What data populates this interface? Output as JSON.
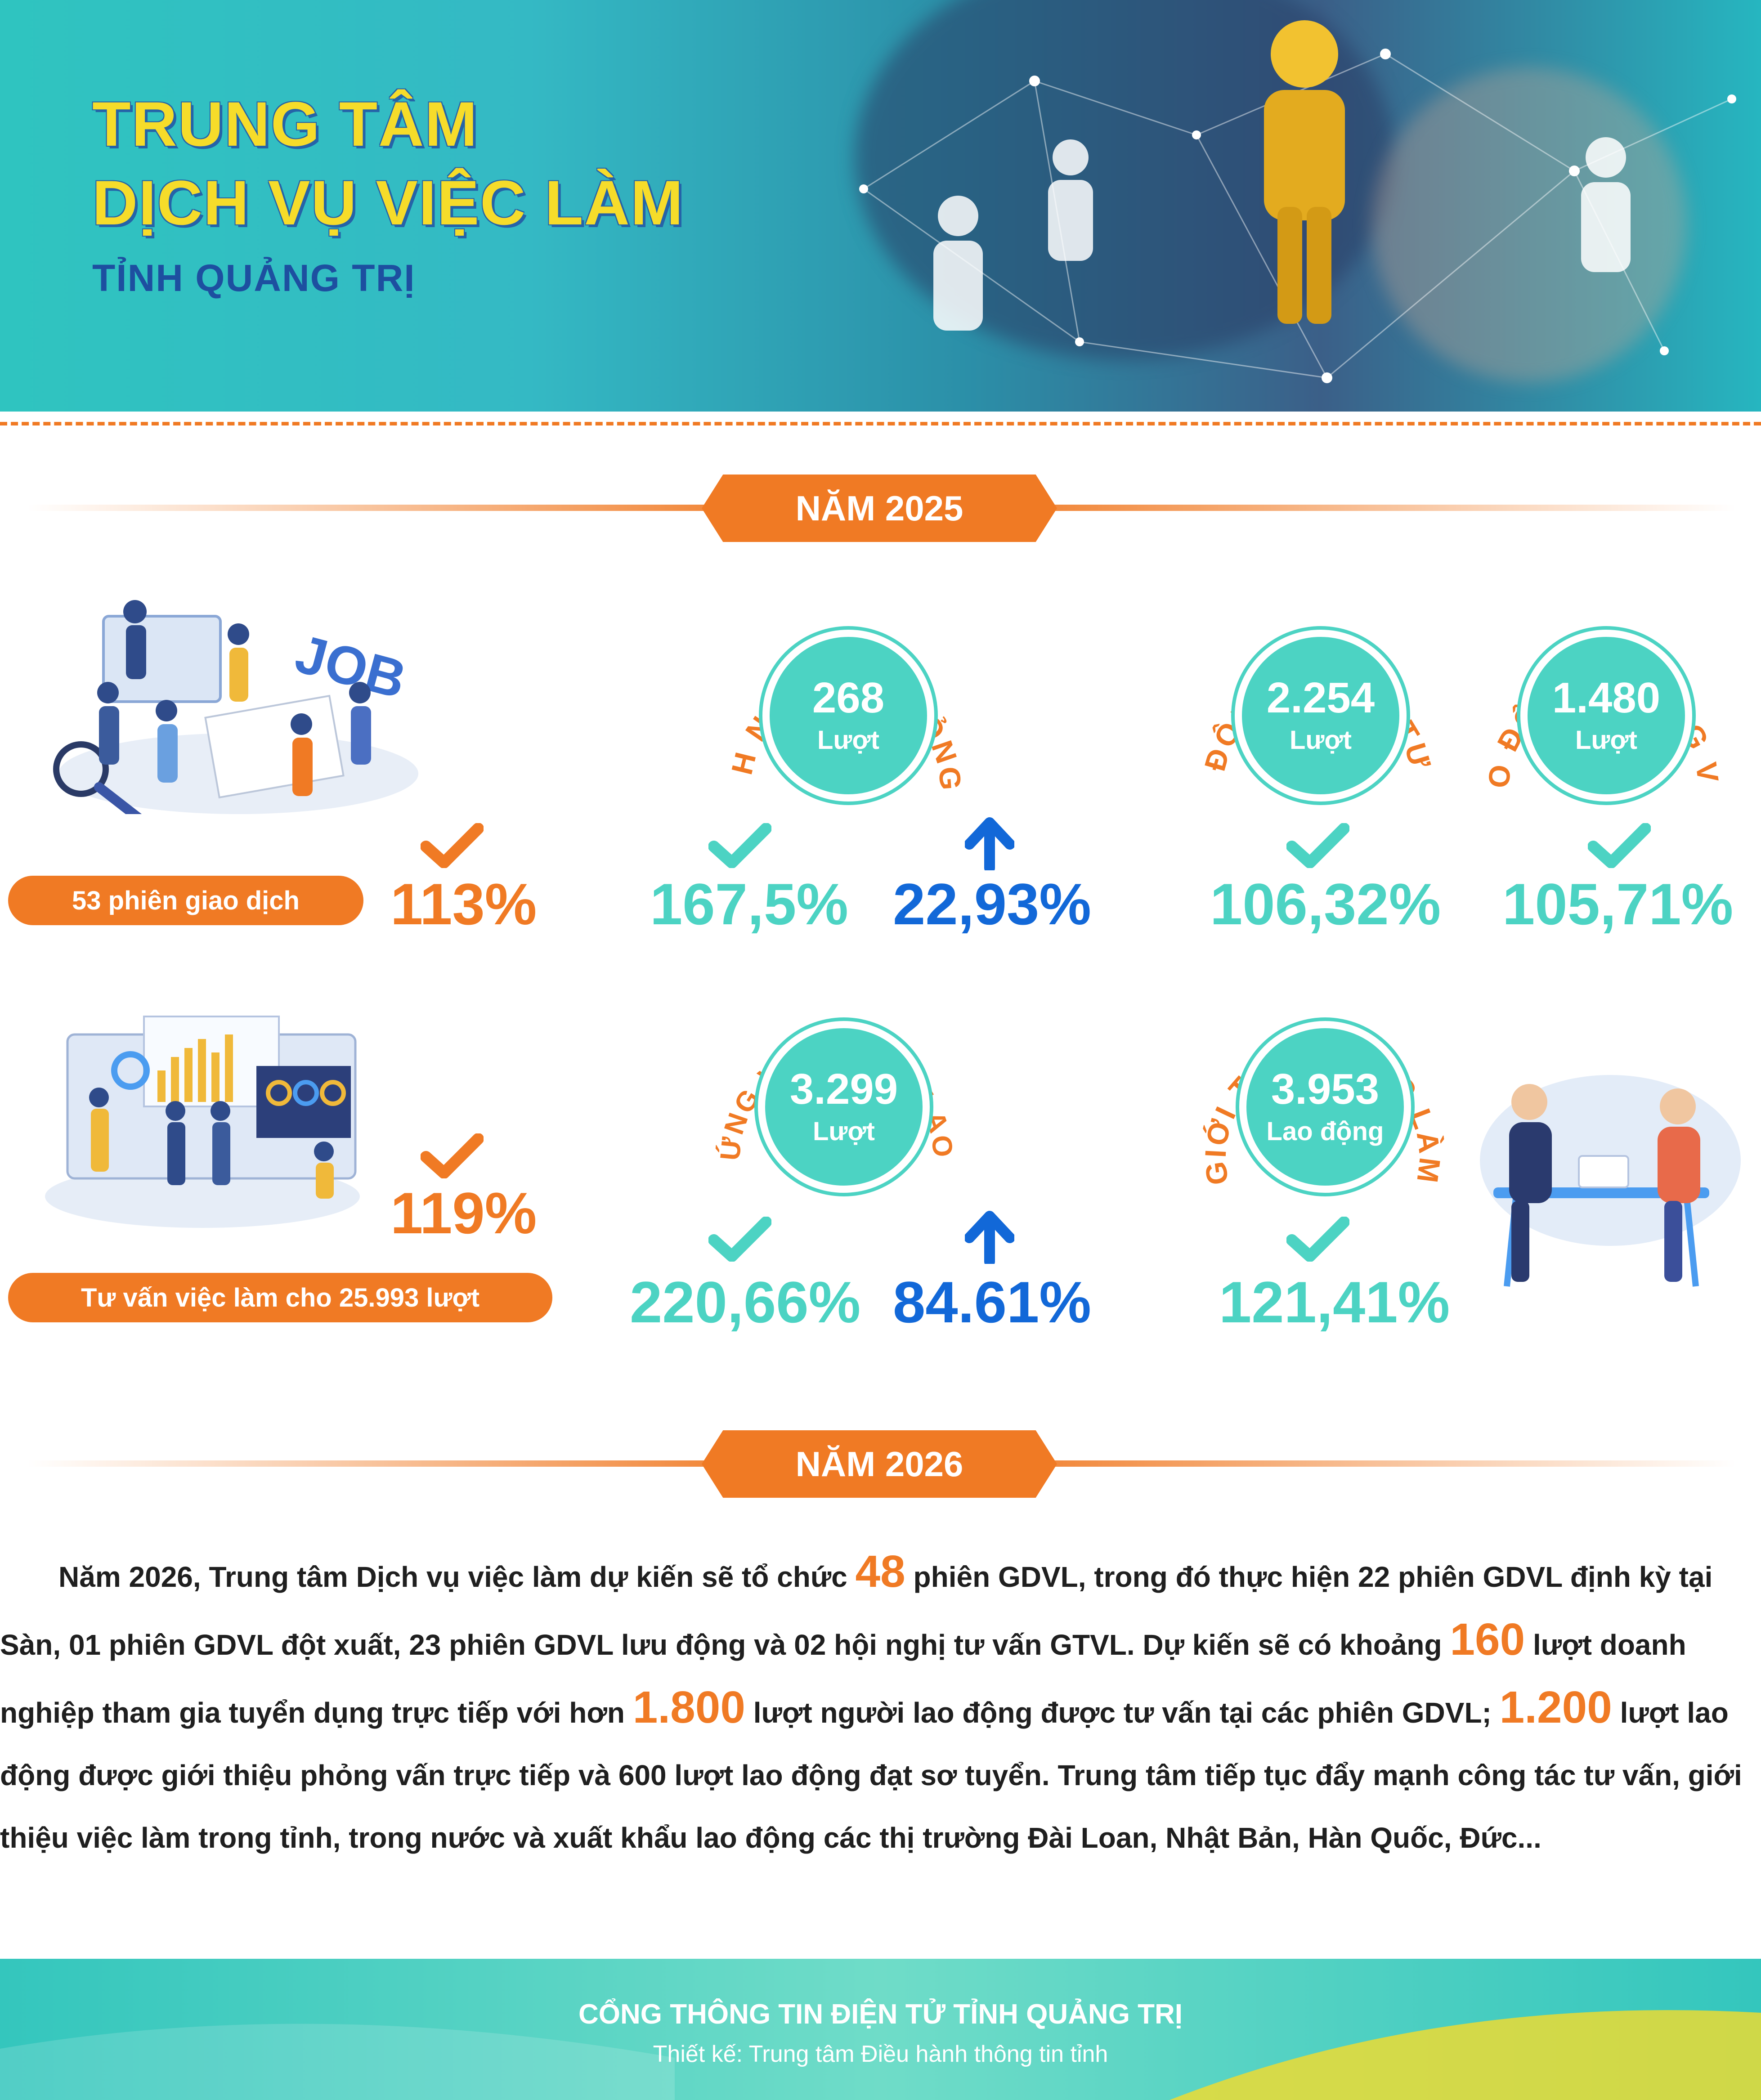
{
  "header": {
    "title_line1": "TRUNG TÂM",
    "title_line2": "DỊCH VỤ VIỆC LÀM",
    "subtitle": "TỈNH QUẢNG TRỊ"
  },
  "year_2025": {
    "label": "NĂM 2025",
    "sessions_pill": "53 phiên giao dịch",
    "sessions_pct": "113%",
    "consult_pill": "Tư vấn việc làm cho 25.993 lượt",
    "consult_pct": "119%",
    "stats": [
      {
        "id": "dn",
        "label": "DOANH NGHIỆP PHỎNG VẤN",
        "number": "268",
        "unit": "Lượt",
        "pct": "167,5%",
        "change": "22,93%"
      },
      {
        "id": "ldtv",
        "label": "LAO ĐỘNG ĐƯỢC TƯ VẤN",
        "number": "2.254",
        "unit": "Lượt",
        "pct": "106,32%"
      },
      {
        "id": "ldpv",
        "label": "LAO ĐỘNG PHỎNG VẤN",
        "number": "1.480",
        "unit": "Lượt",
        "pct": "105,71%"
      },
      {
        "id": "cu",
        "label": "CUNG ỨNG VÀ TUYỂN LAO ĐỘNG",
        "number": "3.299",
        "unit": "Lượt",
        "pct": "220,66%",
        "change": "84.61%"
      },
      {
        "id": "gt",
        "label": "GIỚI THIỆU VIỆC LÀM",
        "number": "3.953",
        "unit": "Lao động",
        "pct": "121,41%"
      }
    ]
  },
  "year_2026": {
    "label": "NĂM 2026",
    "p1": "Năm 2026, Trung tâm Dịch vụ việc làm dự kiến sẽ tổ chức ",
    "h1": "48",
    "p2": " phiên GDVL, trong đó thực hiện 22 phiên GDVL định kỳ tại Sàn, 01 phiên GDVL đột xuất, 23 phiên GDVL lưu động và 02 hội nghị tư vấn GTVL. Dự kiến sẽ có khoảng ",
    "h2": "160",
    "p3": " lượt doanh nghiệp tham gia tuyển dụng trực tiếp với hơn ",
    "h3": "1.800",
    "p4": " lượt người lao động được tư vấn tại các phiên GDVL; ",
    "h4": "1.200",
    "p5": " lượt lao động được giới thiệu phỏng vấn trực tiếp và 600 lượt lao động đạt sơ tuyển. Trung tâm tiếp tục đẩy mạnh công tác tư vấn, giới thiệu việc làm trong tỉnh, trong nước và xuất khẩu lao động các thị trường Đài Loan, Nhật Bản, Hàn Quốc, Đức..."
  },
  "footer": {
    "line1": "CỔNG THÔNG TIN ĐIỆN TỬ TỈNH QUẢNG TRỊ",
    "line2": "Thiết kế: Trung tâm Điều hành thông tin tỉnh"
  },
  "colors": {
    "orange": "#f07a24",
    "teal": "#4cd3c3",
    "blue": "#1268d8",
    "yellow": "#f6dc2a",
    "navy": "#1d4fa0"
  }
}
